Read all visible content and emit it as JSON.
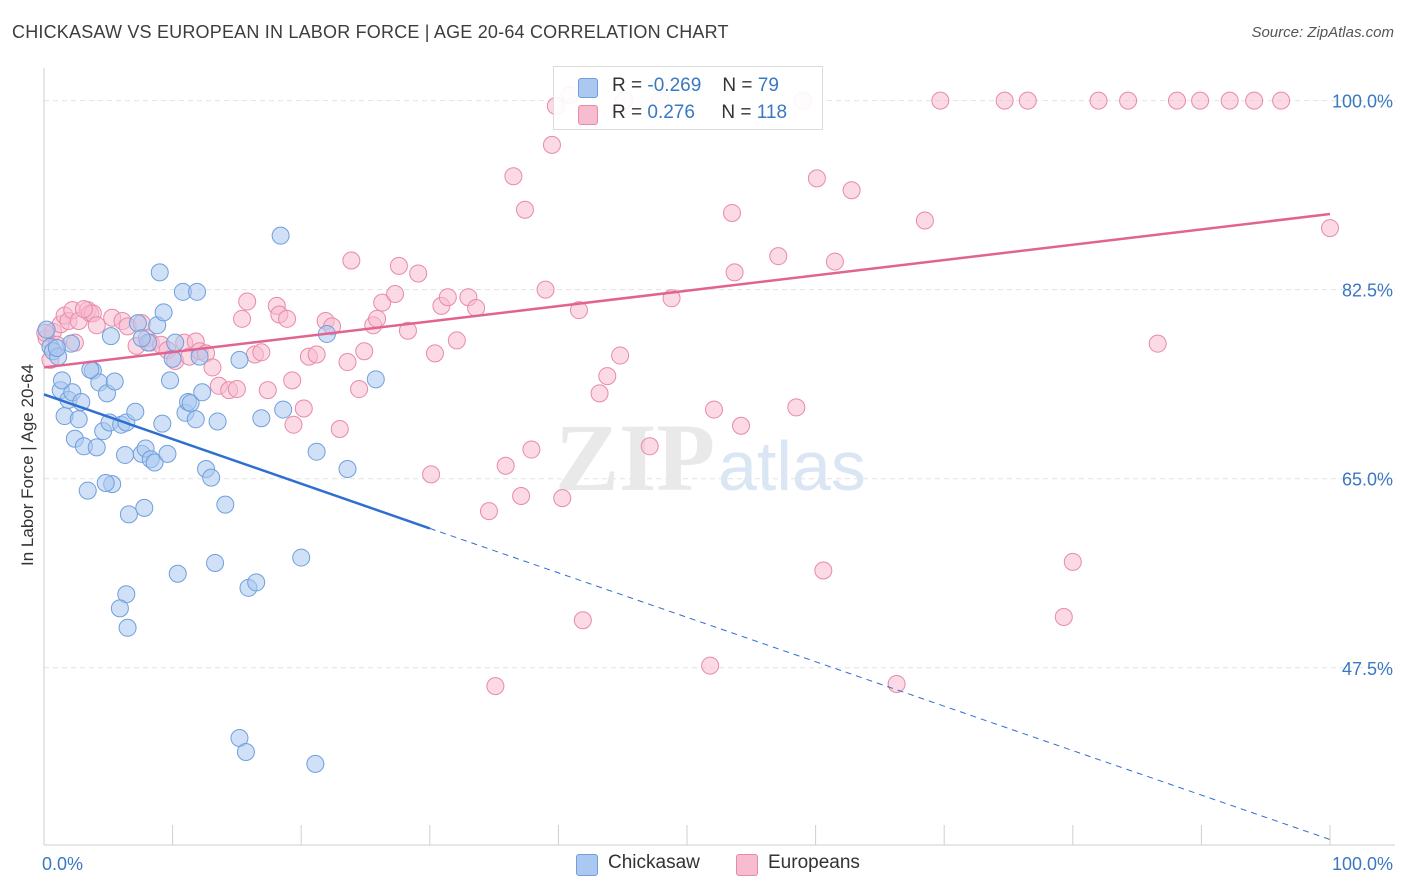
{
  "title": "CHICKASAW VS EUROPEAN IN LABOR FORCE | AGE 20-64 CORRELATION CHART",
  "source": "Source: ZipAtlas.com",
  "watermark": {
    "zip": "ZIP",
    "atlas": "atlas"
  },
  "legend_top": {
    "rows": [
      {
        "r_label": "R =",
        "r_value": "-0.269",
        "n_label": "N =",
        "n_value": "79",
        "color": "#aac8f0"
      },
      {
        "r_label": "R =",
        "r_value": "0.276",
        "n_label": "N =",
        "n_value": "118",
        "color": "#f7bcd0"
      }
    ]
  },
  "legend_bottom": {
    "items": [
      {
        "label": "Chickasaw",
        "color": "#aac8f0"
      },
      {
        "label": "Europeans",
        "color": "#f7bcd0"
      }
    ]
  },
  "chart_data": {
    "type": "scatter",
    "title": "CHICKASAW VS EUROPEAN IN LABOR FORCE | AGE 20-64 CORRELATION CHART",
    "xlabel": "",
    "ylabel": "In Labor Force | Age 20-64",
    "xlim": [
      0,
      100
    ],
    "ylim": [
      31,
      102
    ],
    "x_tick_labels": [
      "0.0%",
      "100.0%"
    ],
    "y_ticks": [
      47.5,
      65.0,
      82.5,
      100.0
    ],
    "y_tick_labels": [
      "47.5%",
      "65.0%",
      "82.5%",
      "100.0%"
    ],
    "grid": true,
    "legend_placement": "bottom",
    "colors": {
      "chickasaw_fill": "#aac8f0",
      "chickasaw_stroke": "#6f9fdc",
      "chickasaw_line": "#2f6fcf",
      "europeans_fill": "#f7bcd0",
      "europeans_stroke": "#e88aa8",
      "europeans_line": "#e0648f",
      "tick_label": "#3a78c2",
      "grid": "#e3e3e3"
    },
    "series": [
      {
        "name": "Chickasaw",
        "trend": {
          "x": [
            0,
            30,
            100
          ],
          "y": [
            72.8,
            60.4,
            31.6
          ],
          "solid_until": 30
        },
        "points": [
          [
            0.2,
            78.8
          ],
          [
            0.5,
            77.2
          ],
          [
            0.7,
            76.8
          ],
          [
            1.1,
            76.3
          ],
          [
            1.3,
            73.2
          ],
          [
            1.6,
            70.8
          ],
          [
            1.9,
            72.3
          ],
          [
            2.2,
            73.0
          ],
          [
            2.4,
            68.7
          ],
          [
            2.7,
            70.5
          ],
          [
            2.9,
            72.1
          ],
          [
            3.1,
            68.0
          ],
          [
            3.4,
            63.9
          ],
          [
            3.8,
            75.0
          ],
          [
            4.1,
            67.9
          ],
          [
            4.3,
            73.9
          ],
          [
            4.6,
            69.4
          ],
          [
            4.9,
            72.9
          ],
          [
            5.1,
            70.2
          ],
          [
            5.3,
            64.5
          ],
          [
            5.5,
            74.0
          ],
          [
            5.2,
            78.2
          ],
          [
            6.0,
            70.0
          ],
          [
            6.3,
            67.2
          ],
          [
            6.6,
            61.7
          ],
          [
            6.4,
            70.2
          ],
          [
            7.1,
            71.2
          ],
          [
            7.3,
            79.4
          ],
          [
            7.6,
            67.3
          ],
          [
            7.8,
            62.3
          ],
          [
            7.9,
            67.8
          ],
          [
            8.1,
            77.6
          ],
          [
            8.3,
            66.8
          ],
          [
            8.6,
            66.5
          ],
          [
            8.8,
            79.2
          ],
          [
            9.0,
            84.1
          ],
          [
            9.2,
            70.1
          ],
          [
            9.3,
            80.4
          ],
          [
            9.6,
            67.3
          ],
          [
            9.8,
            74.1
          ],
          [
            10.0,
            76.1
          ],
          [
            10.4,
            56.2
          ],
          [
            10.8,
            82.3
          ],
          [
            11.0,
            71.1
          ],
          [
            11.2,
            72.1
          ],
          [
            11.4,
            72.0
          ],
          [
            11.8,
            70.5
          ],
          [
            11.9,
            82.3
          ],
          [
            12.1,
            76.3
          ],
          [
            12.3,
            73.0
          ],
          [
            12.6,
            65.9
          ],
          [
            13.0,
            65.1
          ],
          [
            13.3,
            57.2
          ],
          [
            13.5,
            70.3
          ],
          [
            14.1,
            62.6
          ],
          [
            15.2,
            76.0
          ],
          [
            15.9,
            54.9
          ],
          [
            16.5,
            55.4
          ],
          [
            16.9,
            70.6
          ],
          [
            18.4,
            87.5
          ],
          [
            18.6,
            71.4
          ],
          [
            20.0,
            57.7
          ],
          [
            21.2,
            67.5
          ],
          [
            22.0,
            78.4
          ],
          [
            23.6,
            65.9
          ],
          [
            25.8,
            74.2
          ],
          [
            7.6,
            78.0
          ],
          [
            6.4,
            54.3
          ],
          [
            5.9,
            53.0
          ],
          [
            6.5,
            51.2
          ],
          [
            15.2,
            41.0
          ],
          [
            15.7,
            39.7
          ],
          [
            21.1,
            38.6
          ],
          [
            2.1,
            77.5
          ],
          [
            3.6,
            75.1
          ],
          [
            1.4,
            74.1
          ],
          [
            10.2,
            77.6
          ],
          [
            1.0,
            77.1
          ],
          [
            4.8,
            64.6
          ]
        ]
      },
      {
        "name": "Europeans",
        "trend": {
          "x": [
            0,
            100
          ],
          "y": [
            75.3,
            89.5
          ],
          "solid_until": 100
        },
        "points": [
          [
            0.2,
            78.0
          ],
          [
            0.5,
            76.0
          ],
          [
            0.7,
            78.6
          ],
          [
            1.0,
            77.4
          ],
          [
            1.3,
            79.3
          ],
          [
            1.6,
            80.1
          ],
          [
            1.9,
            79.6
          ],
          [
            2.2,
            80.6
          ],
          [
            2.4,
            77.6
          ],
          [
            2.7,
            79.6
          ],
          [
            3.4,
            80.6
          ],
          [
            3.6,
            80.3
          ],
          [
            3.8,
            80.3
          ],
          [
            4.1,
            79.2
          ],
          [
            5.3,
            79.9
          ],
          [
            6.1,
            79.6
          ],
          [
            6.5,
            79.1
          ],
          [
            7.2,
            77.3
          ],
          [
            7.6,
            79.4
          ],
          [
            8.0,
            78.0
          ],
          [
            8.3,
            77.6
          ],
          [
            9.1,
            77.4
          ],
          [
            9.6,
            76.9
          ],
          [
            10.2,
            75.9
          ],
          [
            10.9,
            77.6
          ],
          [
            11.3,
            76.3
          ],
          [
            11.8,
            77.7
          ],
          [
            12.1,
            76.8
          ],
          [
            12.6,
            76.6
          ],
          [
            13.1,
            75.3
          ],
          [
            13.6,
            73.6
          ],
          [
            14.4,
            73.2
          ],
          [
            15.0,
            73.3
          ],
          [
            15.4,
            79.8
          ],
          [
            15.8,
            81.4
          ],
          [
            16.4,
            76.5
          ],
          [
            16.9,
            76.7
          ],
          [
            17.4,
            73.2
          ],
          [
            18.1,
            81.0
          ],
          [
            18.3,
            80.2
          ],
          [
            18.9,
            79.8
          ],
          [
            19.4,
            70.0
          ],
          [
            19.3,
            74.1
          ],
          [
            20.2,
            71.5
          ],
          [
            20.6,
            76.3
          ],
          [
            21.2,
            76.5
          ],
          [
            21.9,
            79.6
          ],
          [
            22.4,
            79.1
          ],
          [
            23.0,
            69.6
          ],
          [
            23.6,
            75.8
          ],
          [
            23.9,
            85.2
          ],
          [
            24.5,
            73.3
          ],
          [
            24.9,
            76.8
          ],
          [
            25.6,
            79.2
          ],
          [
            25.9,
            79.8
          ],
          [
            26.3,
            81.3
          ],
          [
            27.3,
            82.1
          ],
          [
            27.6,
            84.7
          ],
          [
            28.3,
            78.7
          ],
          [
            29.1,
            84.0
          ],
          [
            30.1,
            65.4
          ],
          [
            30.4,
            76.6
          ],
          [
            30.9,
            81.0
          ],
          [
            31.4,
            81.8
          ],
          [
            32.1,
            77.8
          ],
          [
            33.0,
            81.8
          ],
          [
            33.6,
            80.8
          ],
          [
            34.6,
            62.0
          ],
          [
            35.1,
            45.8
          ],
          [
            35.9,
            66.2
          ],
          [
            36.5,
            93.0
          ],
          [
            37.1,
            63.4
          ],
          [
            37.4,
            89.9
          ],
          [
            37.9,
            67.7
          ],
          [
            39.0,
            82.5
          ],
          [
            39.5,
            95.9
          ],
          [
            39.8,
            99.5
          ],
          [
            40.3,
            63.2
          ],
          [
            40.9,
            100.5
          ],
          [
            41.6,
            80.6
          ],
          [
            41.9,
            51.9
          ],
          [
            43.2,
            72.9
          ],
          [
            43.8,
            74.5
          ],
          [
            44.8,
            76.4
          ],
          [
            45.1,
            100.0
          ],
          [
            47.1,
            68.0
          ],
          [
            47.9,
            100.0
          ],
          [
            48.8,
            81.7
          ],
          [
            51.8,
            47.7
          ],
          [
            52.1,
            71.4
          ],
          [
            53.5,
            89.6
          ],
          [
            53.7,
            84.1
          ],
          [
            54.2,
            69.9
          ],
          [
            57.1,
            85.6
          ],
          [
            58.5,
            71.6
          ],
          [
            59.0,
            100.0
          ],
          [
            60.1,
            92.8
          ],
          [
            60.6,
            56.5
          ],
          [
            61.5,
            85.1
          ],
          [
            62.8,
            91.7
          ],
          [
            66.3,
            46.0
          ],
          [
            68.5,
            88.9
          ],
          [
            69.7,
            100.0
          ],
          [
            74.7,
            100.0
          ],
          [
            76.5,
            100.0
          ],
          [
            79.3,
            52.2
          ],
          [
            80.0,
            57.3
          ],
          [
            82.0,
            100.0
          ],
          [
            84.3,
            100.0
          ],
          [
            86.6,
            77.5
          ],
          [
            88.1,
            100.0
          ],
          [
            89.9,
            100.0
          ],
          [
            92.2,
            100.0
          ],
          [
            94.1,
            100.0
          ],
          [
            96.2,
            100.0
          ],
          [
            100.0,
            88.2
          ],
          [
            3.1,
            80.7
          ],
          [
            0.1,
            78.5
          ]
        ]
      }
    ]
  }
}
